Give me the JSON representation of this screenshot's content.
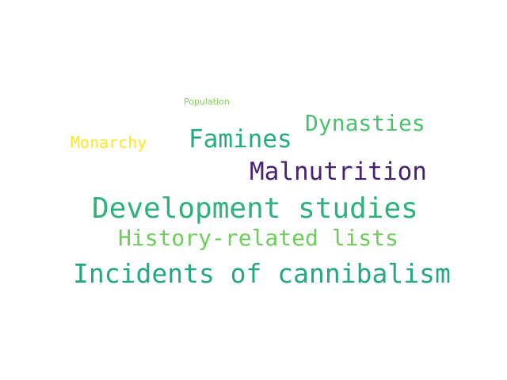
{
  "words": [
    {
      "key": "population",
      "text": "Population",
      "color": "#7ad151"
    },
    {
      "key": "dynasties",
      "text": "Dynasties",
      "color": "#4ac16d"
    },
    {
      "key": "famines",
      "text": "Famines",
      "color": "#25ab82"
    },
    {
      "key": "monarchy",
      "text": "Monarchy",
      "color": "#fde725"
    },
    {
      "key": "malnutrition",
      "text": "Malnutrition",
      "color": "#482173"
    },
    {
      "key": "development",
      "text": "Development studies",
      "color": "#2db27d"
    },
    {
      "key": "history",
      "text": "History-related lists",
      "color": "#6ccd5a"
    },
    {
      "key": "cannibalism",
      "text": "Incidents of cannibalism",
      "color": "#26a784"
    }
  ]
}
